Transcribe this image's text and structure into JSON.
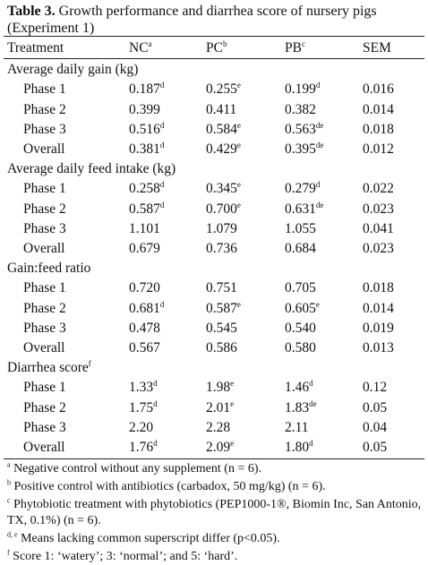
{
  "caption": {
    "label": "Table 3.",
    "text": " Growth performance and diarrhea score of nursery pigs (Experiment 1)"
  },
  "header": [
    {
      "text": "Treatment",
      "sup": ""
    },
    {
      "text": "NC",
      "sup": "a"
    },
    {
      "text": "PC",
      "sup": "b"
    },
    {
      "text": "PB",
      "sup": "c"
    },
    {
      "text": "SEM",
      "sup": ""
    }
  ],
  "sections": [
    {
      "title": "Average daily gain (kg)",
      "title_sup": "",
      "rows": [
        {
          "label": "Phase 1",
          "nc": "0.187",
          "nc_sup": "d",
          "pc": "0.255",
          "pc_sup": "e",
          "pb": "0.199",
          "pb_sup": "d",
          "sem": "0.016"
        },
        {
          "label": "Phase 2",
          "nc": "0.399",
          "nc_sup": "",
          "pc": "0.411",
          "pc_sup": "",
          "pb": "0.382",
          "pb_sup": "",
          "sem": "0.014"
        },
        {
          "label": "Phase 3",
          "nc": "0.516",
          "nc_sup": "d",
          "pc": "0.584",
          "pc_sup": "e",
          "pb": "0.563",
          "pb_sup": "de",
          "sem": "0.018"
        },
        {
          "label": "Overall",
          "nc": "0.381",
          "nc_sup": "d",
          "pc": "0.429",
          "pc_sup": "e",
          "pb": "0.395",
          "pb_sup": "de",
          "sem": "0.012"
        }
      ]
    },
    {
      "title": "Average daily feed intake (kg)",
      "title_sup": "",
      "rows": [
        {
          "label": "Phase 1",
          "nc": "0.258",
          "nc_sup": "d",
          "pc": "0.345",
          "pc_sup": "e",
          "pb": "0.279",
          "pb_sup": "d",
          "sem": "0.022"
        },
        {
          "label": "Phase 2",
          "nc": "0.587",
          "nc_sup": "d",
          "pc": "0.700",
          "pc_sup": "e",
          "pb": "0.631",
          "pb_sup": "de",
          "sem": "0.023"
        },
        {
          "label": "Phase 3",
          "nc": "1.101",
          "nc_sup": "",
          "pc": "1.079",
          "pc_sup": "",
          "pb": "1.055",
          "pb_sup": "",
          "sem": "0.041"
        },
        {
          "label": "Overall",
          "nc": "0.679",
          "nc_sup": "",
          "pc": "0.736",
          "pc_sup": "",
          "pb": "0.684",
          "pb_sup": "",
          "sem": "0.023"
        }
      ]
    },
    {
      "title": "Gain:feed ratio",
      "title_sup": "",
      "rows": [
        {
          "label": "Phase 1",
          "nc": "0.720",
          "nc_sup": "",
          "pc": "0.751",
          "pc_sup": "",
          "pb": "0.705",
          "pb_sup": "",
          "sem": "0.018"
        },
        {
          "label": "Phase 2",
          "nc": "0.681",
          "nc_sup": "d",
          "pc": "0.587",
          "pc_sup": "e",
          "pb": "0.605",
          "pb_sup": "e",
          "sem": "0.014"
        },
        {
          "label": "Phase 3",
          "nc": "0.478",
          "nc_sup": "",
          "pc": "0.545",
          "pc_sup": "",
          "pb": "0.540",
          "pb_sup": "",
          "sem": "0.019"
        },
        {
          "label": "Overall",
          "nc": "0.567",
          "nc_sup": "",
          "pc": "0.586",
          "pc_sup": "",
          "pb": "0.580",
          "pb_sup": "",
          "sem": "0.013"
        }
      ]
    },
    {
      "title": "Diarrhea score",
      "title_sup": "f",
      "rows": [
        {
          "label": "Phase 1",
          "nc": "1.33",
          "nc_sup": "d",
          "pc": "1.98",
          "pc_sup": "e",
          "pb": "1.46",
          "pb_sup": "d",
          "sem": "0.12"
        },
        {
          "label": "Phase 2",
          "nc": "1.75",
          "nc_sup": "d",
          "pc": "2.01",
          "pc_sup": "e",
          "pb": "1.83",
          "pb_sup": "de",
          "sem": "0.05"
        },
        {
          "label": "Phase 3",
          "nc": "2.20",
          "nc_sup": "",
          "pc": "2.28",
          "pc_sup": "",
          "pb": "2.11",
          "pb_sup": "",
          "sem": "0.04"
        },
        {
          "label": "Overall",
          "nc": "1.76",
          "nc_sup": "d",
          "pc": "2.09",
          "pc_sup": "e",
          "pb": "1.80",
          "pb_sup": "d",
          "sem": "0.05"
        }
      ]
    }
  ],
  "footnotes": [
    {
      "sup": "a",
      "text": " Negative control without any supplement (n = 6)."
    },
    {
      "sup": "b",
      "text": " Positive control with antibiotics (carbadox, 50 mg/kg) (n = 6)."
    },
    {
      "sup": "c",
      "text": " Phytobiotic treatment with phytobiotics (PEP1000-1®, Biomin Inc, San Antonio, TX, 0.1%) (n = 6)."
    },
    {
      "sup": "d, e",
      "text": " Means lacking common superscript differ (p<0.05)."
    },
    {
      "sup": "f",
      "text": " Score 1: ‘watery’; 3: ‘normal’; and 5: ‘hard’."
    }
  ]
}
